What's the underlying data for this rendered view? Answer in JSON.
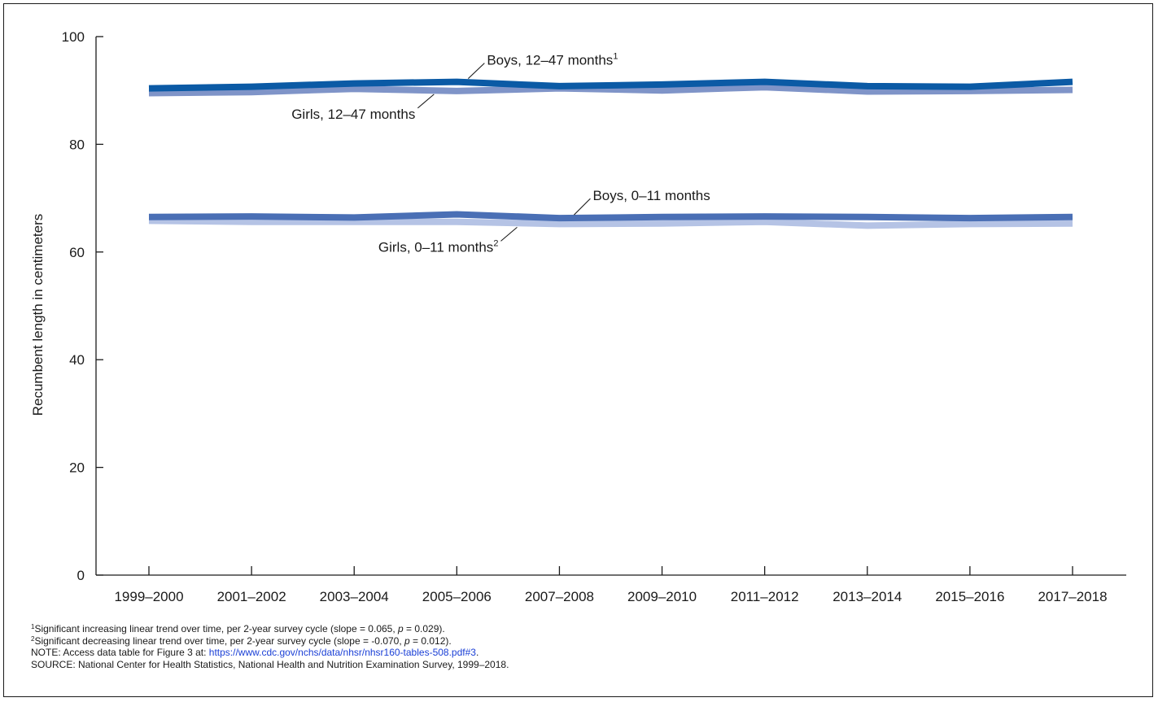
{
  "chart_data": {
    "type": "line",
    "ylabel": "Recumbent length in centimeters",
    "xlabel": "",
    "ylim": [
      0,
      100
    ],
    "yticks": [
      0,
      20,
      40,
      60,
      80,
      100
    ],
    "grid": false,
    "categories": [
      "1999–2000",
      "2001–2002",
      "2003–2004",
      "2005–2006",
      "2007–2008",
      "2009–2010",
      "2011–2012",
      "2013–2014",
      "2015–2016",
      "2017–2018"
    ],
    "series": [
      {
        "name": "Boys, 12–47 months",
        "name_sup": "1",
        "color": "#0b5aa5",
        "values": [
          90.4,
          90.7,
          91.3,
          91.6,
          90.8,
          91.1,
          91.6,
          90.8,
          90.7,
          91.6
        ]
      },
      {
        "name": "Girls, 12–47 months",
        "name_sup": "",
        "color": "#7f94c8",
        "values": [
          89.5,
          89.7,
          90.3,
          89.9,
          90.4,
          90.0,
          90.6,
          89.8,
          89.9,
          90.1
        ]
      },
      {
        "name": "Boys, 0–11 months",
        "name_sup": "",
        "color": "#4a6fb5",
        "values": [
          66.5,
          66.6,
          66.4,
          67.0,
          66.3,
          66.5,
          66.6,
          66.5,
          66.3,
          66.5
        ]
      },
      {
        "name": "Girls, 0–11 months",
        "name_sup": "2",
        "color": "#b5c3e5",
        "values": [
          65.8,
          65.6,
          65.6,
          65.6,
          65.2,
          65.3,
          65.6,
          64.9,
          65.2,
          65.3
        ]
      }
    ]
  },
  "footnotes": {
    "fn1_marker": "1",
    "fn1_text_a": "Significant increasing linear trend over time, per 2-year survey cycle (slope = 0.065, ",
    "fn1_p": "p",
    "fn1_text_b": " = 0.029).",
    "fn2_marker": "2",
    "fn2_text_a": "Significant decreasing linear trend over time, per 2-year survey cycle (slope = -0.070, ",
    "fn2_p": "p",
    "fn2_text_b": " = 0.012).",
    "note_text": "NOTE: Access data table for Figure 3 at: ",
    "note_link": "https://www.cdc.gov/nchs/data/nhsr/nhsr160-tables-508.pdf#3",
    "note_end": ".",
    "source": "SOURCE: National Center for Health Statistics, National Health and Nutrition Examination Survey, 1999–2018."
  },
  "colors": {
    "axis": "#1a1a1a",
    "link": "#1a3fd6"
  }
}
